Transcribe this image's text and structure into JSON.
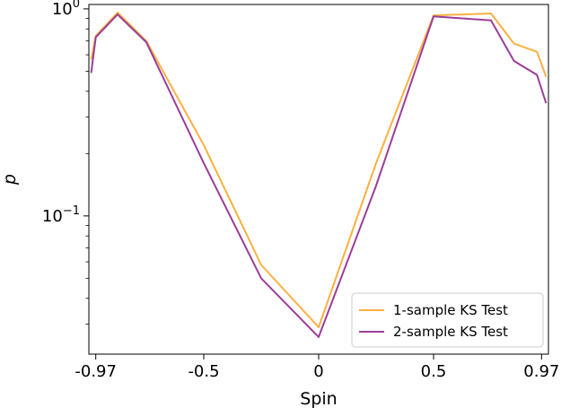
{
  "chart_data": {
    "type": "line",
    "xlabel": "Spin",
    "ylabel": "p",
    "yscale": "log",
    "xlim": [
      -1.0,
      1.0
    ],
    "ylim": [
      0.0215,
      1.05
    ],
    "x_ticks": [
      {
        "value": -0.97,
        "label": "-0.97"
      },
      {
        "value": -0.5,
        "label": "-0.5"
      },
      {
        "value": 0,
        "label": "0"
      },
      {
        "value": 0.5,
        "label": "0.5"
      },
      {
        "value": 0.97,
        "label": "0.97"
      }
    ],
    "y_ticks": [
      {
        "value": 1.0,
        "base": "10",
        "exp": "0"
      },
      {
        "value": 0.1,
        "base": "10",
        "exp": "−1"
      }
    ],
    "y_minor_ticks": [
      0.03,
      0.04,
      0.05,
      0.06,
      0.07,
      0.08,
      0.09,
      0.2,
      0.3,
      0.4,
      0.5,
      0.6,
      0.7,
      0.8,
      0.9
    ],
    "grid": false,
    "legend_position": "lower-right",
    "series": [
      {
        "name": "1-sample KS Test",
        "color": "#fbb040",
        "x": [
          -0.99,
          -0.97,
          -0.875,
          -0.75,
          -0.5,
          -0.25,
          0.0,
          0.25,
          0.5,
          0.75,
          0.85,
          0.95,
          0.99
        ],
        "y": [
          0.57,
          0.74,
          0.96,
          0.7,
          0.22,
          0.058,
          0.029,
          0.18,
          0.93,
          0.95,
          0.68,
          0.62,
          0.47
        ]
      },
      {
        "name": "2-sample KS Test",
        "color": "#9b3d98",
        "x": [
          -0.99,
          -0.97,
          -0.875,
          -0.75,
          -0.5,
          -0.25,
          0.0,
          0.25,
          0.5,
          0.75,
          0.85,
          0.95,
          0.99
        ],
        "y": [
          0.49,
          0.73,
          0.94,
          0.69,
          0.18,
          0.05,
          0.026,
          0.14,
          0.92,
          0.88,
          0.56,
          0.48,
          0.35
        ]
      }
    ]
  }
}
